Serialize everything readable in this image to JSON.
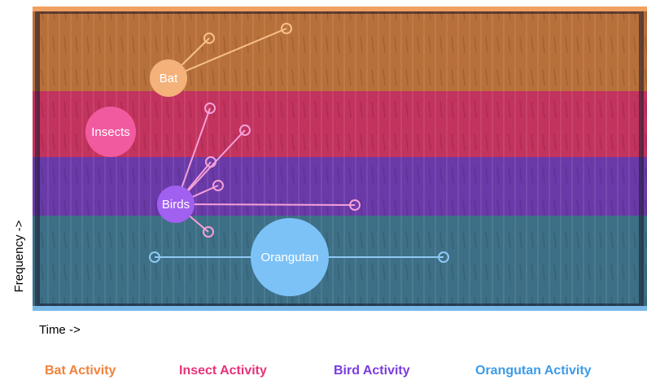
{
  "diagram": {
    "axis_labels": {
      "y": "Frequency ->",
      "x": "Time ->"
    },
    "sources": [
      {
        "label": "Bat"
      },
      {
        "label": "Insects"
      },
      {
        "label": "Birds"
      },
      {
        "label": "Orangutan"
      }
    ],
    "legend": [
      "Bat Activity",
      "Insect Activity",
      "Bird Activity",
      "Orangutan Activity"
    ]
  }
}
